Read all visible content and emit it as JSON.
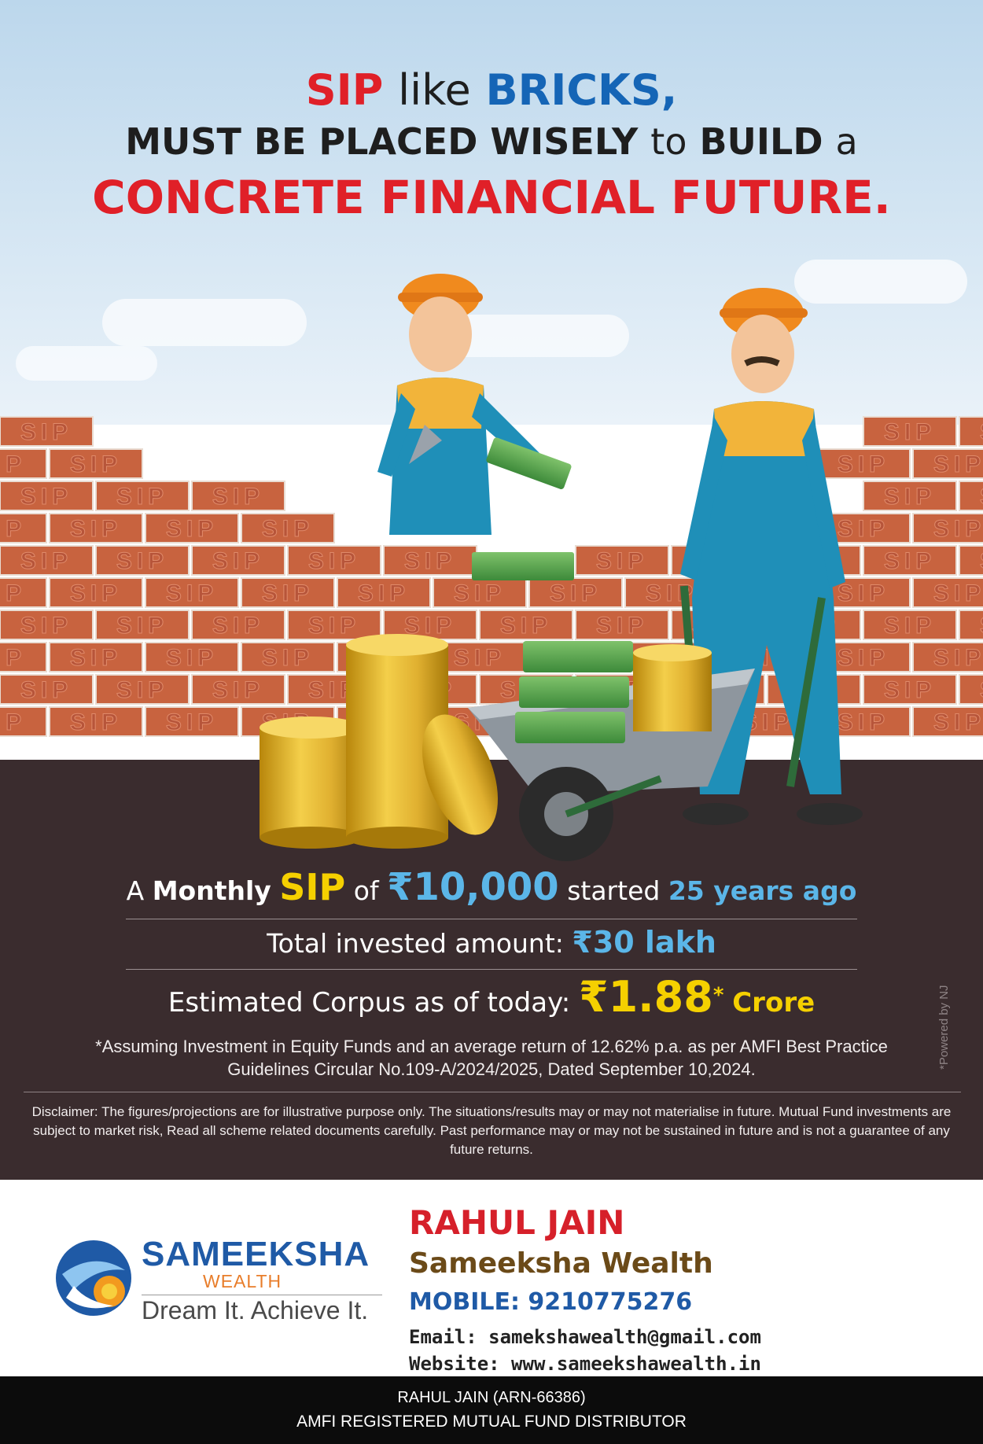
{
  "headline": {
    "sip": "SIP",
    "like": "like",
    "bricks": "BRICKS,",
    "line2_a": "MUST BE PLACED WISELY",
    "line2_b": "to",
    "line2_c": "BUILD",
    "line2_d": "a",
    "line3": "CONCRETE FINANCIAL FUTURE."
  },
  "brick_label": "SIP",
  "facts": {
    "line1_a": "A",
    "line1_b": "Monthly",
    "line1_sip": "SIP",
    "line1_of": "of",
    "line1_amount": "₹10,000",
    "line1_started": "started",
    "line1_years": "25 years ago",
    "line2_label": "Total invested amount:",
    "line2_value": "₹30 lakh",
    "line3_label": "Estimated Corpus as of today:",
    "line3_value": "₹1.88",
    "line3_star": "*",
    "line3_unit": "Crore",
    "assumption": "*Assuming Investment in Equity Funds and an average return of 12.62% p.a. as per AMFI Best Practice  Guidelines Circular No.109-A/2024/2025, Dated September 10,2024.",
    "disclaimer": "Disclaimer: The figures/projections are for illustrative purpose only. The situations/results may or may not materialise in future. Mutual Fund investments are subject to market risk, Read all scheme related documents carefully. Past performance may or may not be sustained in future and is not a guarantee of any future returns.",
    "powered": "*Powered by NJ"
  },
  "brand": {
    "name": "SAMEEKSHA",
    "sub": "WEALTH",
    "tagline": "Dream It. Achieve It."
  },
  "contact": {
    "name": "RAHUL JAIN",
    "firm": "Sameeksha Wealth",
    "mobile": "MOBILE: 9210775276",
    "email": "Email: samekshawealth@gmail.com",
    "website": "Website: www.sameekshawealth.in"
  },
  "footer": {
    "line1": "RAHUL JAIN (ARN-66386)",
    "line2": "AMFI REGISTERED MUTUAL FUND DISTRIBUTOR"
  },
  "colors": {
    "brick": "#c8633f",
    "panel": "#3a2c2e",
    "accent_yellow": "#f5d000",
    "accent_blue": "#5bb6e8",
    "headline_red": "#e02028",
    "headline_blue": "#1565b6"
  }
}
